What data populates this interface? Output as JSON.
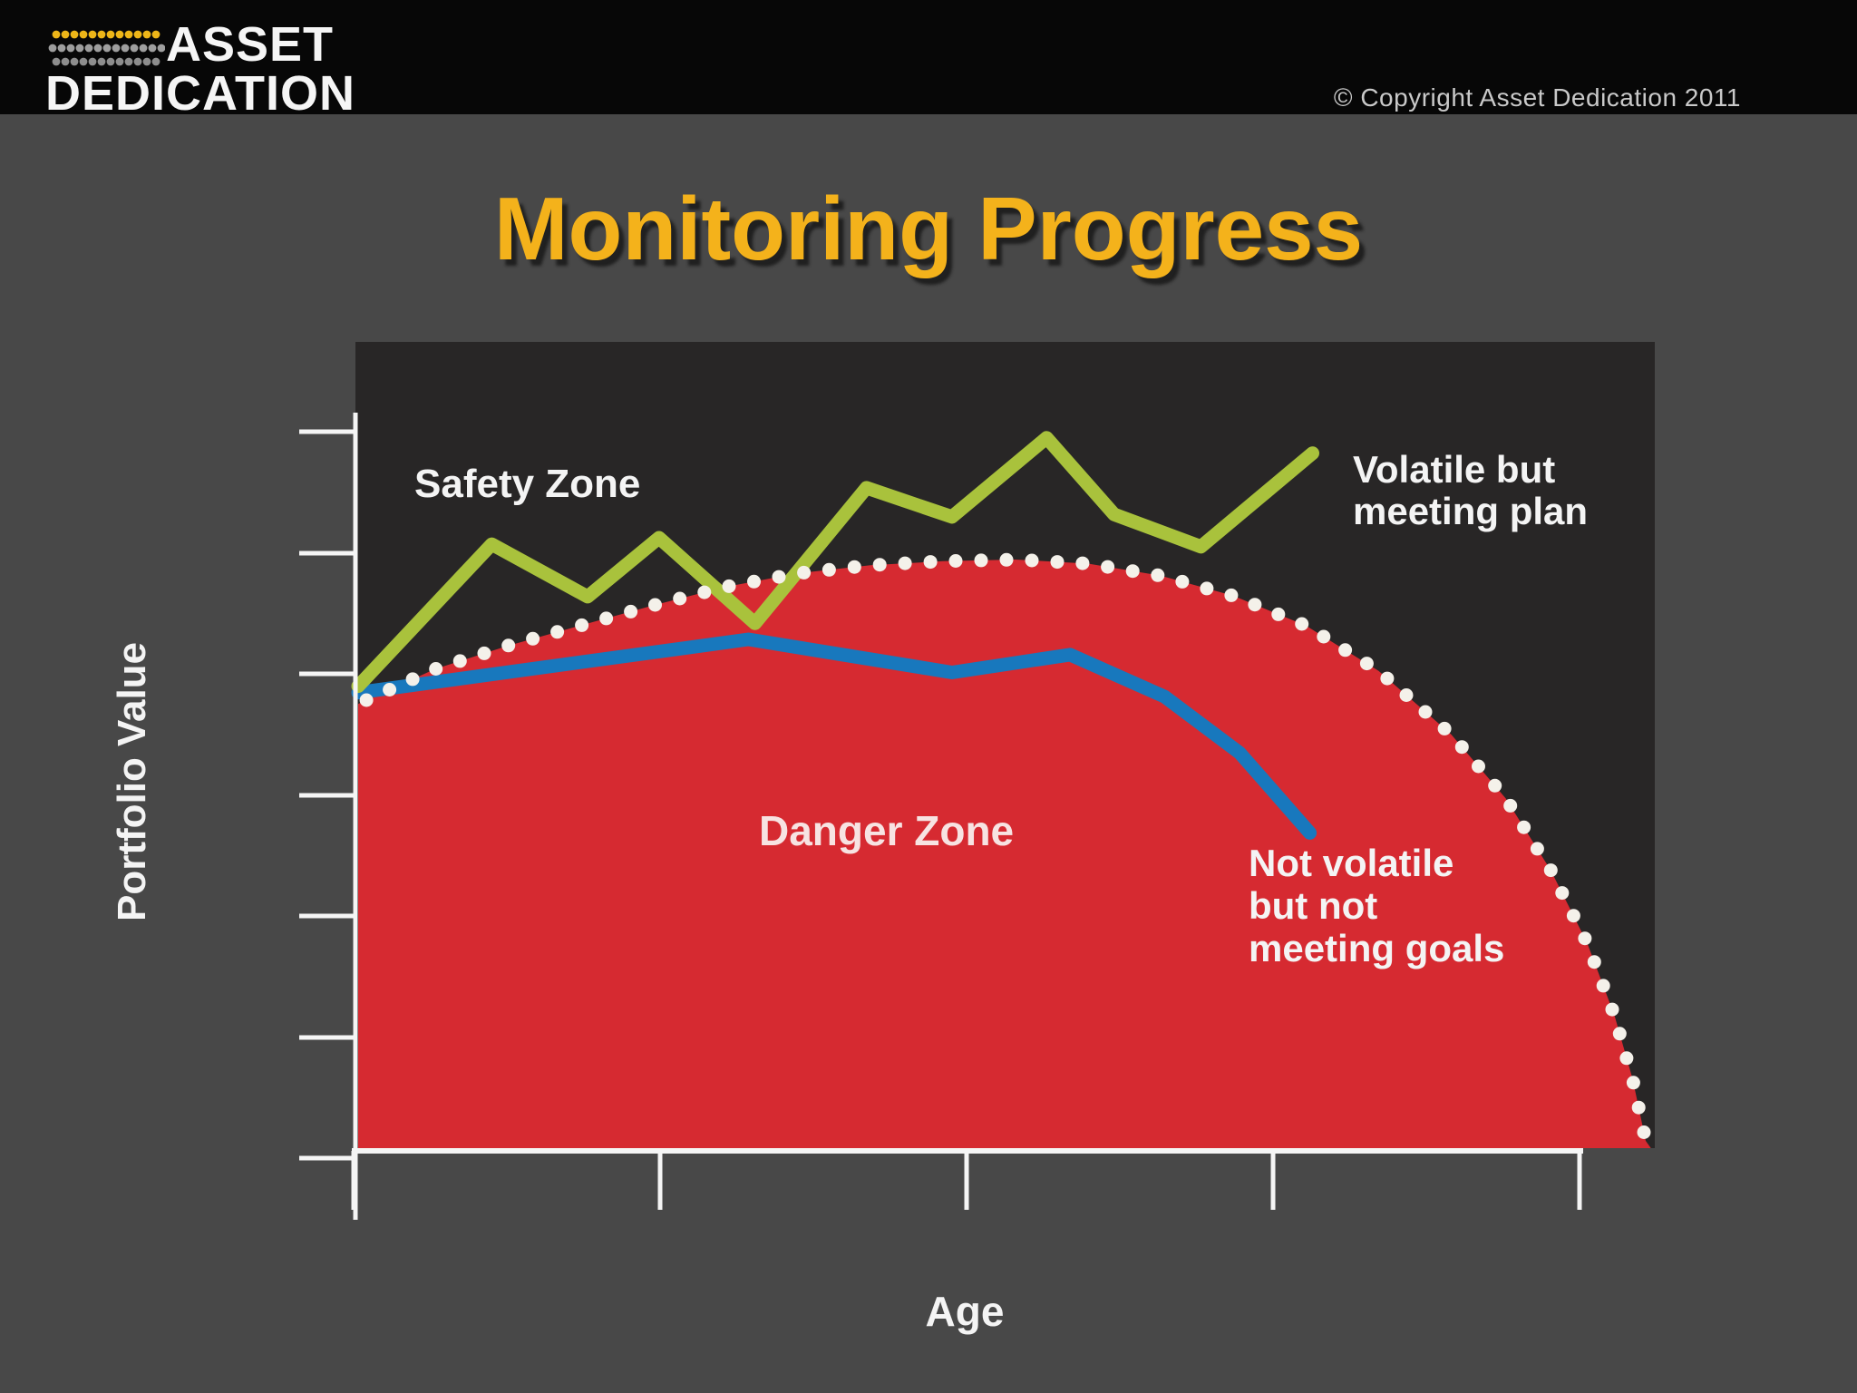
{
  "header": {
    "logo_line1": "ASSET",
    "logo_line2": "DEDICATION",
    "copyright": "© Copyright Asset Dedication 2011",
    "bar_color": "#070707",
    "logo_dot_rows": [
      {
        "color": "#eeb618",
        "count": 12
      },
      {
        "color": "#9e9e9e",
        "count": 13
      },
      {
        "color": "#8d8d8d",
        "count": 12
      }
    ]
  },
  "title": {
    "text": "Monitoring Progress",
    "color": "#f4b21b"
  },
  "chart_data": {
    "type": "area",
    "title": "Monitoring Progress",
    "xlabel": "Age",
    "ylabel": "Portfolio Value",
    "x_axis": {
      "tick_count": 5,
      "tick_labels_visible": false,
      "range_note": "no numeric labels shown"
    },
    "y_axis": {
      "tick_count": 7,
      "tick_labels_visible": false,
      "range_note": "no numeric labels shown"
    },
    "grid": false,
    "legend_position": "inline-annotations",
    "plot_background": "#282626",
    "slide_background": "#484848",
    "axis_color": "#f5f5f5",
    "annotations": {
      "safety_zone": "Safety Zone",
      "danger_zone": "Danger Zone",
      "green_label_lines": [
        "Volatile but",
        "meeting plan"
      ],
      "blue_label_lines": [
        "Not volatile",
        "but not",
        "meeting goals"
      ]
    },
    "series": [
      {
        "name": "Volatile but meeting plan",
        "kind": "line",
        "color": "#a9c23c",
        "points": [
          [
            0,
            57.3
          ],
          [
            10.3,
            74.9
          ],
          [
            17.7,
            68.4
          ],
          [
            23.2,
            75.7
          ],
          [
            30.6,
            65.1
          ],
          [
            39.2,
            81.9
          ],
          [
            45.8,
            78.3
          ],
          [
            53.1,
            88.1
          ],
          [
            58.3,
            78.6
          ],
          [
            65,
            74.6
          ],
          [
            73.6,
            86.2
          ]
        ]
      },
      {
        "name": "Not volatile but not meeting goals",
        "kind": "line",
        "color": "#1878bd",
        "points": [
          [
            0,
            56.5
          ],
          [
            30.1,
            63.1
          ],
          [
            45.8,
            59
          ],
          [
            54.9,
            61.2
          ],
          [
            62.2,
            56
          ],
          [
            68,
            49
          ],
          [
            73.4,
            39.1
          ]
        ]
      },
      {
        "name": "Danger Zone boundary (required plan value)",
        "kind": "area-boundary-dotted",
        "fill_color": "#d62a31",
        "dot_color": "#f4f1ea",
        "points": [
          [
            0,
            55.1
          ],
          [
            5.9,
            59.4
          ],
          [
            11.5,
            62.3
          ],
          [
            17.1,
            64.8
          ],
          [
            22.7,
            67.3
          ],
          [
            28.3,
            69.6
          ],
          [
            33.9,
            71.3
          ],
          [
            39.5,
            72.3
          ],
          [
            45.1,
            72.8
          ],
          [
            50.7,
            73.0
          ],
          [
            56.3,
            72.5
          ],
          [
            61.9,
            71.0
          ],
          [
            67.5,
            68.5
          ],
          [
            73.1,
            64.8
          ],
          [
            78.7,
            59.2
          ],
          [
            84.3,
            51.3
          ],
          [
            88.5,
            43.4
          ],
          [
            92,
            34.4
          ],
          [
            94.8,
            25.4
          ],
          [
            96.9,
            16.4
          ],
          [
            98.3,
            8.5
          ],
          [
            99.3,
            0.9
          ],
          [
            99.7,
            0
          ]
        ]
      }
    ]
  }
}
